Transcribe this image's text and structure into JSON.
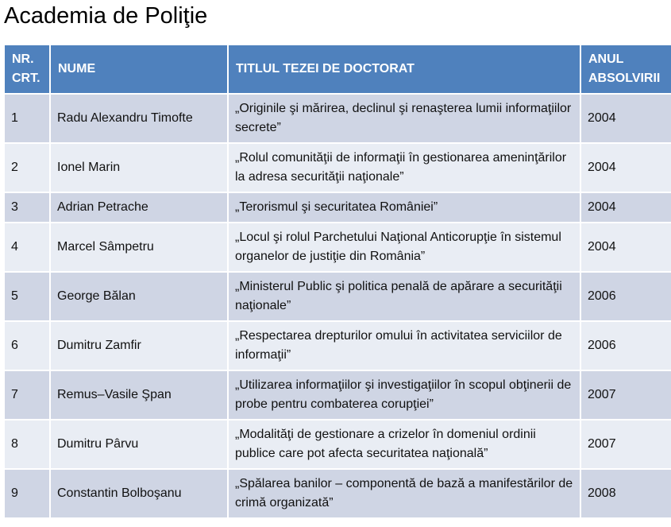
{
  "title": "Academia de Poliţie",
  "colors": {
    "header_bg": "#4F81BD",
    "band_dark": "#CFD5E4",
    "band_light": "#E9EDF4",
    "header_text": "#FFFFFF",
    "body_text": "#111111"
  },
  "table": {
    "columns": [
      "NR. CRT.",
      "NUME",
      "TITLUL TEZEI DE DOCTORAT",
      "ANUL ABSOLVIRII"
    ],
    "rows": [
      {
        "nr": "1",
        "nume": "Radu Alexandru Timofte",
        "titlu": "„Originile şi mărirea, declinul şi renaşterea lumii informaţiilor secrete”",
        "anul": "2004"
      },
      {
        "nr": "2",
        "nume": "Ionel Marin",
        "titlu": "„Rolul comunităţii de informaţii în gestionarea ameninţărilor la adresa securităţii naţionale”",
        "anul": "2004"
      },
      {
        "nr": "3",
        "nume": "Adrian Petrache",
        "titlu": "„Terorismul şi securitatea României”",
        "anul": "2004"
      },
      {
        "nr": "4",
        "nume": "Marcel Sâmpetru",
        "titlu": "„Locul şi rolul Parchetului Naţional Anticorupţie în sistemul organelor de justiţie din România”",
        "anul": "2004"
      },
      {
        "nr": "5",
        "nume": "George Bălan",
        "titlu": "„Ministerul Public şi politica penală de apărare a securităţii naţionale”",
        "anul": "2006"
      },
      {
        "nr": "6",
        "nume": "Dumitru Zamfir",
        "titlu": "„Respectarea drepturilor omului în activitatea serviciilor de informaţii”",
        "anul": "2006"
      },
      {
        "nr": "7",
        "nume": "Remus–Vasile Şpan",
        "titlu": "„Utilizarea informaţiilor şi investigaţiilor în scopul obţinerii de probe pentru combaterea corupţiei”",
        "anul": "2007"
      },
      {
        "nr": "8",
        "nume": "Dumitru Pârvu",
        "titlu": "„Modalităţi de gestionare a crizelor în domeniul ordinii publice care pot afecta securitatea naţională”",
        "anul": "2007"
      },
      {
        "nr": "9",
        "nume": "Constantin Bolboşanu",
        "titlu": "„Spălarea banilor – componentă de bază a manifestărilor de crimă organizată”",
        "anul": "2008"
      }
    ]
  }
}
